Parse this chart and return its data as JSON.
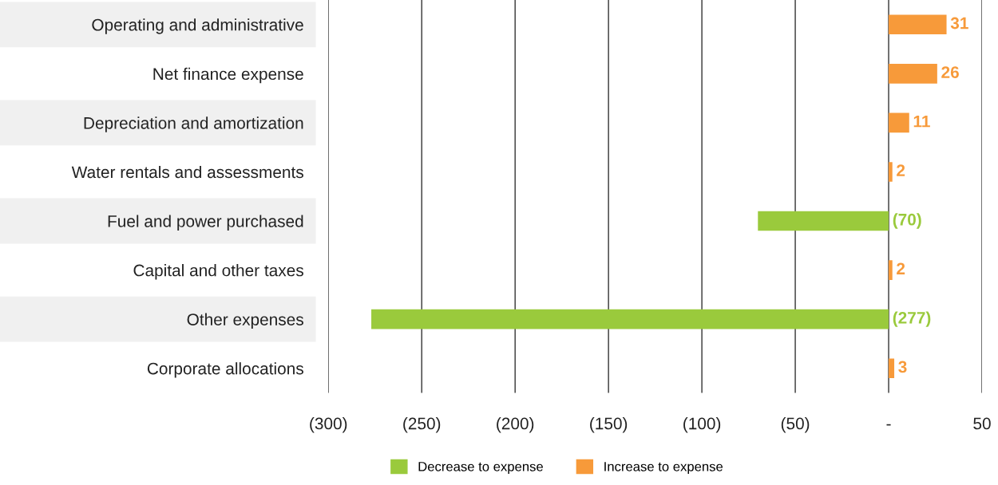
{
  "chart_data": {
    "type": "bar",
    "orientation": "horizontal",
    "categories": [
      "Operating and administrative",
      "Net finance expense",
      "Depreciation and amortization",
      "Water rentals and assessments",
      "Fuel and power purchased",
      "Capital and other taxes",
      "Other expenses",
      "Corporate allocations"
    ],
    "series": [
      {
        "name": "Decrease to expense",
        "color": "#9aca3c",
        "values": [
          null,
          null,
          null,
          null,
          -70,
          null,
          -277,
          null
        ],
        "value_labels": [
          null,
          null,
          null,
          null,
          "(70)",
          null,
          "(277)",
          null
        ]
      },
      {
        "name": "Increase to expense",
        "color": "#f79a3a",
        "values": [
          31,
          26,
          11,
          2,
          null,
          2,
          null,
          3
        ],
        "value_labels": [
          "31",
          "26",
          "11",
          "2",
          null,
          "2",
          null,
          "3"
        ]
      }
    ],
    "xlim": [
      -300,
      50
    ],
    "xticks": [
      {
        "value": -300,
        "label": "(300)"
      },
      {
        "value": -250,
        "label": "(250)"
      },
      {
        "value": -200,
        "label": "(200)"
      },
      {
        "value": -150,
        "label": "(150)"
      },
      {
        "value": -100,
        "label": "(100)"
      },
      {
        "value": -50,
        "label": "(50)"
      },
      {
        "value": 0,
        "label": "-"
      },
      50
    ],
    "grid": "x",
    "legend": "bottom"
  }
}
